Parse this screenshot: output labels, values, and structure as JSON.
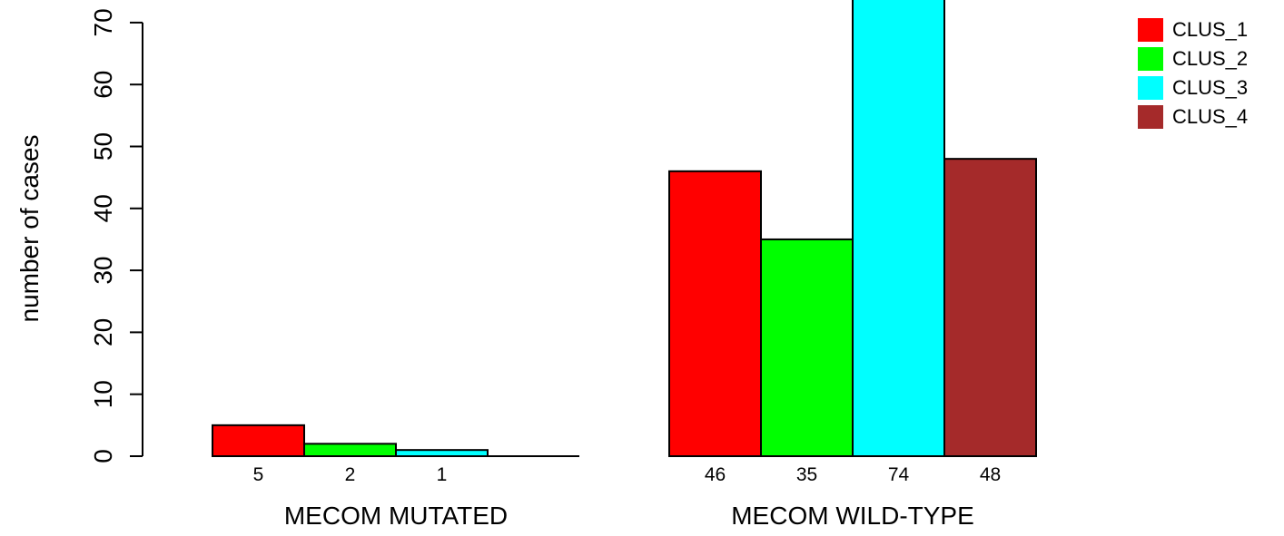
{
  "chart_data": {
    "type": "bar",
    "ylabel": "number of cases",
    "ylim": [
      0,
      70
    ],
    "yticks": [
      0,
      10,
      20,
      30,
      40,
      50,
      60,
      70
    ],
    "groups": [
      {
        "label": "MECOM MUTATED",
        "values": [
          5,
          2,
          1,
          0
        ],
        "count_labels": [
          "5",
          "2",
          "1",
          ""
        ]
      },
      {
        "label": "MECOM WILD-TYPE",
        "values": [
          46,
          35,
          74,
          48
        ],
        "count_labels": [
          "46",
          "35",
          "74",
          "48"
        ]
      }
    ],
    "series": [
      {
        "name": "CLUS_1",
        "color": "#ff0000"
      },
      {
        "name": "CLUS_2",
        "color": "#00ff00"
      },
      {
        "name": "CLUS_3",
        "color": "#00ffff"
      },
      {
        "name": "CLUS_4",
        "color": "#a52a2a"
      }
    ],
    "legend_position": "top-right",
    "grid": false
  }
}
